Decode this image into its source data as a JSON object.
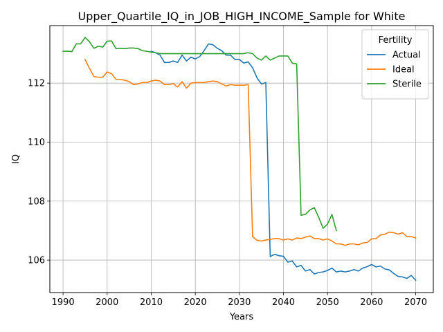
{
  "chart_data": {
    "type": "line",
    "title": "Upper_Quartile_IQ_in_JOB_HIGH_INCOME_Sample for White",
    "xlabel": "Years",
    "ylabel": "IQ",
    "xlim": [
      1987,
      2074
    ],
    "ylim": [
      104.9,
      113.95
    ],
    "xticks": [
      1990,
      2000,
      2010,
      2020,
      2030,
      2040,
      2050,
      2060,
      2070
    ],
    "yticks": [
      106,
      108,
      110,
      112
    ],
    "grid": true,
    "legend": {
      "title": "Fertility",
      "placement": "top-right"
    },
    "series": [
      {
        "name": "Actual",
        "color": "#1f77b4",
        "x": [
          2010,
          2011,
          2012,
          2013,
          2014,
          2015,
          2016,
          2017,
          2018,
          2019,
          2020,
          2021,
          2022,
          2023,
          2024,
          2025,
          2026,
          2027,
          2028,
          2029,
          2030,
          2031,
          2032,
          2033,
          2034,
          2035,
          2036,
          2037,
          2038,
          2039,
          2040,
          2041,
          2042,
          2043,
          2044,
          2045,
          2046,
          2047,
          2048,
          2049,
          2050,
          2051,
          2052,
          2053,
          2054,
          2055,
          2056,
          2057,
          2058,
          2059,
          2060,
          2061,
          2062,
          2063,
          2064,
          2065,
          2066,
          2067,
          2068,
          2069,
          2070
        ],
        "values": [
          113.08,
          113.03,
          112.95,
          112.7,
          112.7,
          112.75,
          112.7,
          112.95,
          112.75,
          112.88,
          112.82,
          112.9,
          113.1,
          113.33,
          113.3,
          113.18,
          113.1,
          112.95,
          112.95,
          112.8,
          112.8,
          112.68,
          112.72,
          112.52,
          112.18,
          111.97,
          112.02,
          106.12,
          106.2,
          106.15,
          106.13,
          105.93,
          105.97,
          105.77,
          105.82,
          105.63,
          105.68,
          105.53,
          105.58,
          105.6,
          105.65,
          105.73,
          105.6,
          105.63,
          105.6,
          105.63,
          105.68,
          105.63,
          105.73,
          105.78,
          105.85,
          105.77,
          105.8,
          105.7,
          105.67,
          105.55,
          105.45,
          105.43,
          105.38,
          105.48,
          105.32
        ]
      },
      {
        "name": "Ideal",
        "color": "#ff7f0e",
        "x": [
          1995,
          1996,
          1997,
          1998,
          1999,
          2000,
          2001,
          2002,
          2003,
          2004,
          2005,
          2006,
          2007,
          2008,
          2009,
          2010,
          2011,
          2012,
          2013,
          2014,
          2015,
          2016,
          2017,
          2018,
          2019,
          2020,
          2021,
          2022,
          2023,
          2024,
          2025,
          2026,
          2027,
          2028,
          2029,
          2030,
          2031,
          2032,
          2033,
          2034,
          2035,
          2036,
          2037,
          2038,
          2039,
          2040,
          2041,
          2042,
          2043,
          2044,
          2045,
          2046,
          2047,
          2048,
          2049,
          2050,
          2051,
          2052,
          2053,
          2054,
          2055,
          2056,
          2057,
          2058,
          2059,
          2060,
          2061,
          2062,
          2063,
          2064,
          2065,
          2066,
          2067,
          2068,
          2069,
          2070
        ],
        "values": [
          112.8,
          112.5,
          112.22,
          112.2,
          112.2,
          112.38,
          112.32,
          112.13,
          112.12,
          112.1,
          112.05,
          111.95,
          111.97,
          112.02,
          112.02,
          112.07,
          112.1,
          112.07,
          111.95,
          111.95,
          111.98,
          111.87,
          112.05,
          111.83,
          112.0,
          112.02,
          112.02,
          112.02,
          112.05,
          112.07,
          112.05,
          111.97,
          111.9,
          111.95,
          111.93,
          111.93,
          111.93,
          111.95,
          106.8,
          106.67,
          106.65,
          106.68,
          106.7,
          106.73,
          106.73,
          106.68,
          106.72,
          106.68,
          106.75,
          106.73,
          106.78,
          106.82,
          106.73,
          106.73,
          106.68,
          106.72,
          106.65,
          106.55,
          106.55,
          106.5,
          106.55,
          106.55,
          106.52,
          106.58,
          106.6,
          106.72,
          106.73,
          106.85,
          106.88,
          106.95,
          106.93,
          106.88,
          106.93,
          106.8,
          106.8,
          106.75
        ]
      },
      {
        "name": "Sterile",
        "color": "#2ca02c",
        "x": [
          1990,
          1991,
          1992,
          1993,
          1994,
          1995,
          1996,
          1997,
          1998,
          1999,
          2000,
          2001,
          2002,
          2003,
          2004,
          2005,
          2006,
          2007,
          2008,
          2009,
          2010,
          2011,
          2012,
          2013,
          2014,
          2015,
          2016,
          2017,
          2018,
          2019,
          2020,
          2021,
          2022,
          2023,
          2024,
          2025,
          2026,
          2027,
          2028,
          2029,
          2030,
          2031,
          2032,
          2033,
          2034,
          2035,
          2036,
          2037,
          2038,
          2039,
          2040,
          2041,
          2042,
          2043,
          2044,
          2045,
          2046,
          2047,
          2048,
          2049,
          2050,
          2051,
          2052
        ],
        "values": [
          113.08,
          113.08,
          113.07,
          113.33,
          113.33,
          113.55,
          113.4,
          113.18,
          113.25,
          113.22,
          113.42,
          113.43,
          113.17,
          113.18,
          113.17,
          113.19,
          113.19,
          113.17,
          113.1,
          113.08,
          113.05,
          113.03,
          113.0,
          113.0,
          113.0,
          113.0,
          113.0,
          113.0,
          113.0,
          113.0,
          113.0,
          113.0,
          113.0,
          113.0,
          113.0,
          113.0,
          113.0,
          113.0,
          113.0,
          113.0,
          113.0,
          113.0,
          113.03,
          113.0,
          112.85,
          112.78,
          112.92,
          112.78,
          112.85,
          112.92,
          112.92,
          112.92,
          112.68,
          112.65,
          107.52,
          107.55,
          107.7,
          107.78,
          107.45,
          107.08,
          107.22,
          107.55,
          107.0
        ]
      }
    ]
  }
}
